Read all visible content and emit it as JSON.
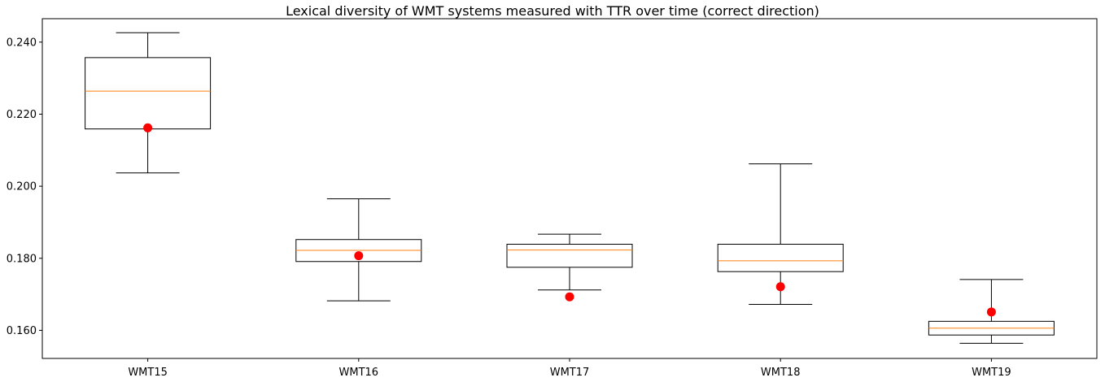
{
  "chart_data": {
    "type": "boxplot",
    "title": "Lexical diversity of WMT systems measured with TTR over time (correct direction)",
    "xlabel": "",
    "ylabel": "",
    "categories": [
      "WMT15",
      "WMT16",
      "WMT17",
      "WMT18",
      "WMT19"
    ],
    "ylim": [
      0.1522,
      0.2465
    ],
    "yticks": [
      0.16,
      0.18,
      0.2,
      0.22,
      0.24
    ],
    "ytick_labels": [
      "0.160",
      "0.180",
      "0.200",
      "0.220",
      "0.240"
    ],
    "grid": false,
    "legend": "none",
    "boxes": [
      {
        "whisker_low": 0.2037,
        "q1": 0.2159,
        "median": 0.2264,
        "q3": 0.2357,
        "whisker_high": 0.2426,
        "point": 0.2162
      },
      {
        "whisker_low": 0.1682,
        "q1": 0.1791,
        "median": 0.1822,
        "q3": 0.1852,
        "whisker_high": 0.1965,
        "point": 0.1807
      },
      {
        "whisker_low": 0.1712,
        "q1": 0.1775,
        "median": 0.1823,
        "q3": 0.1839,
        "whisker_high": 0.1867,
        "point": 0.1693
      },
      {
        "whisker_low": 0.1672,
        "q1": 0.1763,
        "median": 0.1793,
        "q3": 0.1839,
        "whisker_high": 0.2062,
        "point": 0.1721
      },
      {
        "whisker_low": 0.1564,
        "q1": 0.1587,
        "median": 0.1606,
        "q3": 0.1625,
        "whisker_high": 0.1741,
        "point": 0.1651
      }
    ],
    "colors": {
      "box": "#000000",
      "median": "#ff7f0e",
      "point": "#ff0000"
    }
  }
}
